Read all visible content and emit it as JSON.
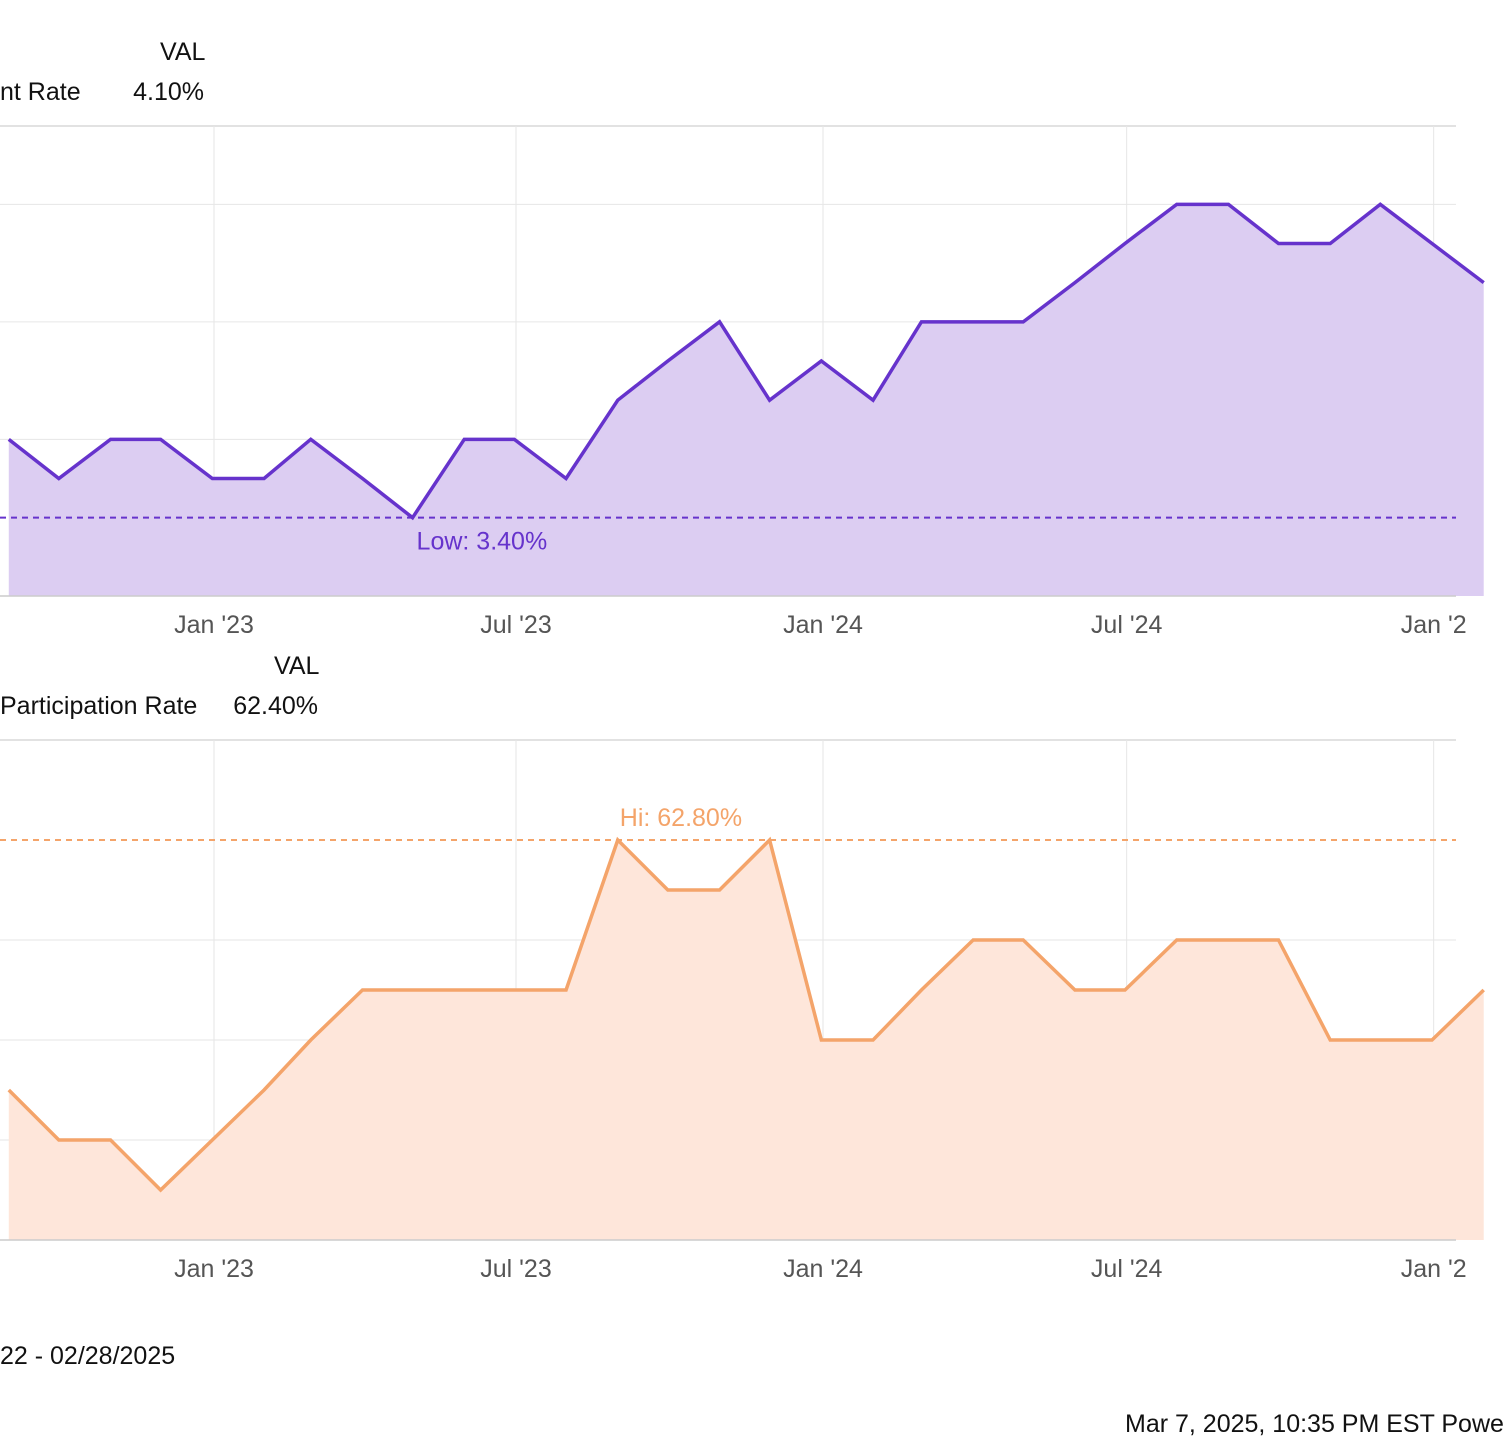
{
  "footer": {
    "date_range": "22 - 02/28/2025",
    "timestamp": "Mar 7, 2025, 10:35 PM EST Powe"
  },
  "chart_data": [
    {
      "type": "area",
      "legend": {
        "header": "VAL",
        "series_label": "nt Rate",
        "value": "4.10%"
      },
      "color": "#6633cc",
      "fill": "#dccdf2",
      "ylim": [
        3.2,
        4.4
      ],
      "gridlines": [
        3.6,
        3.9,
        4.2
      ],
      "x": [
        "2022-08-31",
        "2022-09-30",
        "2022-10-31",
        "2022-11-30",
        "2022-12-31",
        "2023-01-31",
        "2023-02-28",
        "2023-03-31",
        "2023-04-30",
        "2023-05-31",
        "2023-06-30",
        "2023-07-31",
        "2023-08-31",
        "2023-09-30",
        "2023-10-31",
        "2023-11-30",
        "2023-12-31",
        "2024-01-31",
        "2024-02-29",
        "2024-03-31",
        "2024-04-30",
        "2024-05-31",
        "2024-06-30",
        "2024-07-31",
        "2024-08-31",
        "2024-09-30",
        "2024-10-31",
        "2024-11-30",
        "2024-12-31",
        "2025-01-31"
      ],
      "values": [
        3.6,
        3.5,
        3.6,
        3.6,
        3.5,
        3.5,
        3.6,
        3.5,
        3.4,
        3.6,
        3.6,
        3.5,
        3.7,
        3.8,
        3.9,
        3.7,
        3.8,
        3.7,
        3.9,
        3.9,
        3.9,
        4.0,
        4.1,
        4.2,
        4.2,
        4.1,
        4.1,
        4.2,
        4.1,
        4.0
      ],
      "reference_line": {
        "value": 3.4,
        "label": "Low: 3.40%"
      },
      "xticks": [
        "Jan '23",
        "Jul '23",
        "Jan '24",
        "Jul '24",
        "Jan '2"
      ]
    },
    {
      "type": "area",
      "legend": {
        "header": "VAL",
        "series_label": "Participation Rate",
        "value": "62.40%"
      },
      "color": "#f4a46a",
      "fill": "#fee6da",
      "ylim": [
        62.0,
        63.0
      ],
      "gridlines": [
        62.2,
        62.4,
        62.6
      ],
      "x": [
        "2022-08-31",
        "2022-09-30",
        "2022-10-31",
        "2022-11-30",
        "2022-12-31",
        "2023-01-31",
        "2023-02-28",
        "2023-03-31",
        "2023-04-30",
        "2023-05-31",
        "2023-06-30",
        "2023-07-31",
        "2023-08-31",
        "2023-09-30",
        "2023-10-31",
        "2023-11-30",
        "2023-12-31",
        "2024-01-31",
        "2024-02-29",
        "2024-03-31",
        "2024-04-30",
        "2024-05-31",
        "2024-06-30",
        "2024-07-31",
        "2024-08-31",
        "2024-09-30",
        "2024-10-31",
        "2024-11-30",
        "2024-12-31",
        "2025-01-31"
      ],
      "values": [
        62.3,
        62.2,
        62.2,
        62.1,
        62.2,
        62.3,
        62.4,
        62.5,
        62.5,
        62.5,
        62.5,
        62.5,
        62.8,
        62.7,
        62.7,
        62.8,
        62.4,
        62.4,
        62.5,
        62.6,
        62.6,
        62.5,
        62.5,
        62.6,
        62.6,
        62.6,
        62.4,
        62.4,
        62.4,
        62.5
      ],
      "reference_line": {
        "value": 62.8,
        "label": "Hi: 62.80%"
      },
      "xticks": [
        "Jan '23",
        "Jul '23",
        "Jan '24",
        "Jul '24",
        "Jan '2"
      ]
    }
  ]
}
